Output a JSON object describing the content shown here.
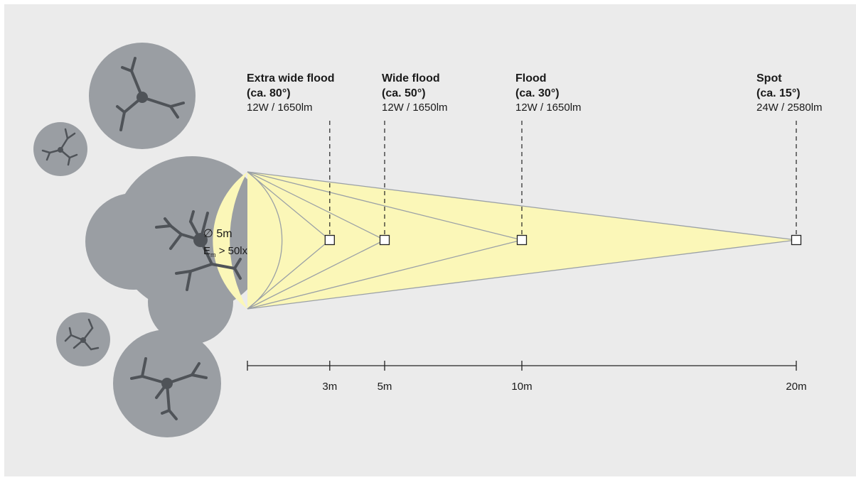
{
  "colors": {
    "background": "#ebebeb",
    "tree_canopy": "#9a9ea3",
    "tree_trunk": "#4f5358",
    "light_beam": "#fbf7b8",
    "beam_lines": "#9aa0a6",
    "line_dark": "#222222"
  },
  "illuminated_area": {
    "diameter": "5m",
    "diameter_symbol": "∅",
    "illuminance_base": "E",
    "illuminance_sub": "m",
    "illuminance_value": "> 50lx"
  },
  "spotlights": [
    {
      "title": "Extra wide flood",
      "angle": "(ca. 80°)",
      "spec": "12W / 1650lm",
      "distance_m": 3
    },
    {
      "title": "Wide flood",
      "angle": "(ca. 50°)",
      "spec": "12W / 1650lm",
      "distance_m": 5
    },
    {
      "title": "Flood",
      "angle": "(ca. 30°)",
      "spec": "12W / 1650lm",
      "distance_m": 10
    },
    {
      "title": "Spot",
      "angle": "(ca. 15°)",
      "spec": "24W / 2580lm",
      "distance_m": 20
    }
  ],
  "scale": {
    "ticks": [
      "3m",
      "5m",
      "10m",
      "20m"
    ]
  }
}
